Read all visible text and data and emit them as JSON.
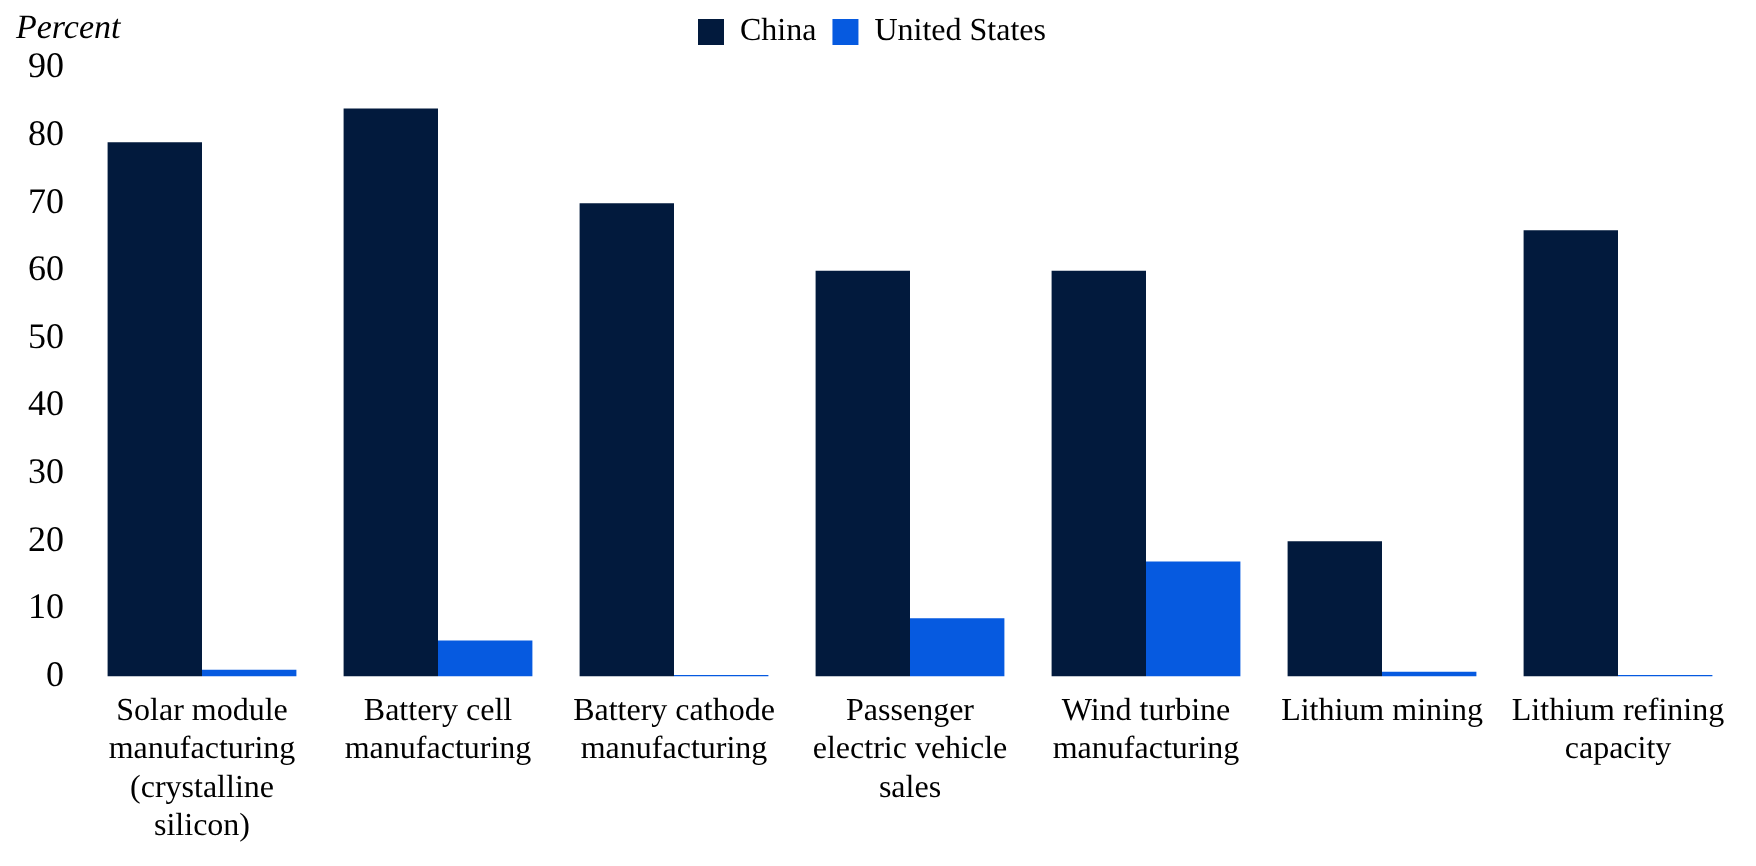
{
  "chart_data": {
    "type": "bar",
    "ylabel": "Percent",
    "categories": [
      "Solar module manufacturing (crystalline silicon)",
      "Battery cell manufacturing",
      "Battery cathode manufacturing",
      "Passenger electric vehicle sales",
      "Wind turbine manufacturing",
      "Lithium mining",
      "Lithium refining capacity"
    ],
    "series": [
      {
        "name": "China",
        "color": "#021a3d",
        "values": [
          79,
          84,
          70,
          60,
          60,
          20,
          66
        ]
      },
      {
        "name": "United States",
        "color": "#065ae0",
        "values": [
          1,
          5.3,
          0.2,
          8.6,
          17,
          0.7,
          0.2
        ]
      }
    ],
    "ylim": [
      0,
      90
    ],
    "yticks": [
      0,
      10,
      20,
      30,
      40,
      50,
      60,
      70,
      80,
      90
    ],
    "grid": false,
    "legend": "top"
  }
}
